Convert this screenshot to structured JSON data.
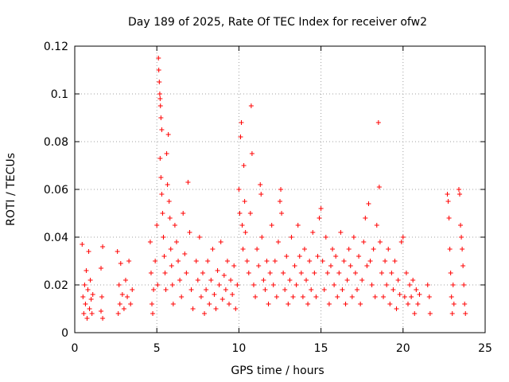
{
  "chart_data": {
    "type": "scatter",
    "title": "Day 189 of 2025, Rate Of TEC Index for receiver ofw2",
    "xlabel": "GPS time / hours",
    "ylabel": "ROTI / TECUs",
    "xlim": [
      0,
      25
    ],
    "ylim": [
      0,
      0.12
    ],
    "x_ticks": [
      0,
      5,
      10,
      15,
      20,
      25
    ],
    "x_tick_labels": [
      "0",
      "5",
      "10",
      "15",
      "20",
      "25"
    ],
    "y_ticks": [
      0,
      0.02,
      0.04,
      0.06,
      0.08,
      0.1,
      0.12
    ],
    "y_tick_labels": [
      "0",
      "0.02",
      "0.04",
      "0.06",
      "0.08",
      "0.1",
      "0.12"
    ],
    "grid": true,
    "marker": "+",
    "color": "#ff0000",
    "series": [
      {
        "points": [
          [
            0.45,
            0.037
          ],
          [
            0.5,
            0.015
          ],
          [
            0.55,
            0.008
          ],
          [
            0.6,
            0.02
          ],
          [
            0.65,
            0.012
          ],
          [
            0.7,
            0.026
          ],
          [
            0.75,
            0.006
          ],
          [
            0.8,
            0.018
          ],
          [
            0.85,
            0.034
          ],
          [
            0.9,
            0.01
          ],
          [
            0.95,
            0.022
          ],
          [
            1.0,
            0.014
          ],
          [
            1.05,
            0.008
          ],
          [
            1.1,
            0.016
          ],
          [
            1.6,
            0.027
          ],
          [
            1.6,
            0.009
          ],
          [
            1.65,
            0.015
          ],
          [
            1.7,
            0.036
          ],
          [
            1.7,
            0.006
          ],
          [
            2.6,
            0.034
          ],
          [
            2.65,
            0.008
          ],
          [
            2.7,
            0.02
          ],
          [
            2.75,
            0.012
          ],
          [
            2.8,
            0.029
          ],
          [
            2.9,
            0.016
          ],
          [
            3.0,
            0.01
          ],
          [
            3.1,
            0.022
          ],
          [
            3.2,
            0.015
          ],
          [
            3.3,
            0.03
          ],
          [
            3.4,
            0.012
          ],
          [
            3.5,
            0.018
          ],
          [
            4.6,
            0.038
          ],
          [
            4.65,
            0.025
          ],
          [
            4.7,
            0.012
          ],
          [
            4.75,
            0.008
          ],
          [
            4.8,
            0.018
          ],
          [
            4.9,
            0.03
          ],
          [
            5.0,
            0.045
          ],
          [
            5.05,
            0.02
          ],
          [
            5.1,
            0.115
          ],
          [
            5.12,
            0.11
          ],
          [
            5.15,
            0.105
          ],
          [
            5.18,
            0.1
          ],
          [
            5.2,
            0.098
          ],
          [
            5.22,
            0.095
          ],
          [
            5.25,
            0.09
          ],
          [
            5.3,
            0.085
          ],
          [
            5.2,
            0.073
          ],
          [
            5.25,
            0.065
          ],
          [
            5.3,
            0.058
          ],
          [
            5.35,
            0.05
          ],
          [
            5.4,
            0.04
          ],
          [
            5.45,
            0.032
          ],
          [
            5.5,
            0.025
          ],
          [
            5.55,
            0.018
          ],
          [
            5.6,
            0.075
          ],
          [
            5.65,
            0.062
          ],
          [
            5.7,
            0.083
          ],
          [
            5.75,
            0.055
          ],
          [
            5.8,
            0.048
          ],
          [
            5.85,
            0.035
          ],
          [
            5.9,
            0.028
          ],
          [
            5.95,
            0.02
          ],
          [
            6.0,
            0.012
          ],
          [
            6.1,
            0.045
          ],
          [
            6.2,
            0.038
          ],
          [
            6.3,
            0.03
          ],
          [
            6.4,
            0.022
          ],
          [
            6.5,
            0.015
          ],
          [
            6.6,
            0.05
          ],
          [
            6.7,
            0.033
          ],
          [
            6.8,
            0.025
          ],
          [
            6.9,
            0.063
          ],
          [
            7.0,
            0.042
          ],
          [
            7.1,
            0.018
          ],
          [
            7.2,
            0.01
          ],
          [
            7.4,
            0.03
          ],
          [
            7.5,
            0.022
          ],
          [
            7.6,
            0.04
          ],
          [
            7.7,
            0.015
          ],
          [
            7.8,
            0.025
          ],
          [
            7.9,
            0.008
          ],
          [
            8.0,
            0.018
          ],
          [
            8.1,
            0.03
          ],
          [
            8.2,
            0.012
          ],
          [
            8.3,
            0.022
          ],
          [
            8.4,
            0.035
          ],
          [
            8.5,
            0.016
          ],
          [
            8.6,
            0.01
          ],
          [
            8.7,
            0.026
          ],
          [
            8.8,
            0.02
          ],
          [
            8.9,
            0.038
          ],
          [
            9.0,
            0.014
          ],
          [
            9.1,
            0.024
          ],
          [
            9.2,
            0.018
          ],
          [
            9.3,
            0.03
          ],
          [
            9.4,
            0.012
          ],
          [
            9.5,
            0.022
          ],
          [
            9.6,
            0.016
          ],
          [
            9.7,
            0.028
          ],
          [
            9.8,
            0.01
          ],
          [
            9.9,
            0.02
          ],
          [
            10.0,
            0.06
          ],
          [
            10.05,
            0.05
          ],
          [
            10.1,
            0.082
          ],
          [
            10.15,
            0.088
          ],
          [
            10.2,
            0.045
          ],
          [
            10.25,
            0.035
          ],
          [
            10.3,
            0.07
          ],
          [
            10.35,
            0.055
          ],
          [
            10.4,
            0.042
          ],
          [
            10.5,
            0.03
          ],
          [
            10.6,
            0.025
          ],
          [
            10.7,
            0.05
          ],
          [
            10.75,
            0.095
          ],
          [
            10.8,
            0.075
          ],
          [
            10.9,
            0.02
          ],
          [
            11.0,
            0.015
          ],
          [
            11.1,
            0.035
          ],
          [
            11.2,
            0.028
          ],
          [
            11.3,
            0.062
          ],
          [
            11.35,
            0.058
          ],
          [
            11.4,
            0.04
          ],
          [
            11.5,
            0.022
          ],
          [
            11.6,
            0.018
          ],
          [
            11.7,
            0.03
          ],
          [
            11.8,
            0.012
          ],
          [
            11.9,
            0.025
          ],
          [
            12.0,
            0.045
          ],
          [
            12.1,
            0.02
          ],
          [
            12.2,
            0.03
          ],
          [
            12.3,
            0.015
          ],
          [
            12.4,
            0.038
          ],
          [
            12.5,
            0.055
          ],
          [
            12.55,
            0.06
          ],
          [
            12.6,
            0.05
          ],
          [
            12.7,
            0.025
          ],
          [
            12.8,
            0.018
          ],
          [
            12.9,
            0.032
          ],
          [
            13.0,
            0.012
          ],
          [
            13.1,
            0.022
          ],
          [
            13.2,
            0.04
          ],
          [
            13.3,
            0.015
          ],
          [
            13.4,
            0.028
          ],
          [
            13.5,
            0.02
          ],
          [
            13.6,
            0.045
          ],
          [
            13.7,
            0.032
          ],
          [
            13.8,
            0.025
          ],
          [
            13.9,
            0.015
          ],
          [
            14.0,
            0.035
          ],
          [
            14.1,
            0.022
          ],
          [
            14.2,
            0.012
          ],
          [
            14.3,
            0.03
          ],
          [
            14.4,
            0.018
          ],
          [
            14.5,
            0.042
          ],
          [
            14.6,
            0.025
          ],
          [
            14.7,
            0.015
          ],
          [
            14.8,
            0.032
          ],
          [
            14.9,
            0.048
          ],
          [
            15.0,
            0.052
          ],
          [
            15.1,
            0.03
          ],
          [
            15.2,
            0.018
          ],
          [
            15.3,
            0.04
          ],
          [
            15.4,
            0.025
          ],
          [
            15.5,
            0.012
          ],
          [
            15.6,
            0.028
          ],
          [
            15.7,
            0.035
          ],
          [
            15.8,
            0.02
          ],
          [
            15.9,
            0.032
          ],
          [
            16.0,
            0.015
          ],
          [
            16.1,
            0.025
          ],
          [
            16.2,
            0.042
          ],
          [
            16.3,
            0.018
          ],
          [
            16.4,
            0.03
          ],
          [
            16.5,
            0.012
          ],
          [
            16.6,
            0.022
          ],
          [
            16.7,
            0.035
          ],
          [
            16.8,
            0.028
          ],
          [
            16.9,
            0.015
          ],
          [
            17.0,
            0.04
          ],
          [
            17.1,
            0.025
          ],
          [
            17.2,
            0.018
          ],
          [
            17.3,
            0.032
          ],
          [
            17.4,
            0.012
          ],
          [
            17.5,
            0.022
          ],
          [
            17.6,
            0.038
          ],
          [
            17.7,
            0.048
          ],
          [
            17.8,
            0.028
          ],
          [
            17.9,
            0.054
          ],
          [
            18.0,
            0.03
          ],
          [
            18.1,
            0.02
          ],
          [
            18.2,
            0.035
          ],
          [
            18.3,
            0.015
          ],
          [
            18.4,
            0.045
          ],
          [
            18.5,
            0.088
          ],
          [
            18.55,
            0.061
          ],
          [
            18.6,
            0.038
          ],
          [
            18.7,
            0.025
          ],
          [
            18.8,
            0.015
          ],
          [
            18.9,
            0.03
          ],
          [
            19.0,
            0.02
          ],
          [
            19.1,
            0.035
          ],
          [
            19.2,
            0.012
          ],
          [
            19.3,
            0.025
          ],
          [
            19.4,
            0.018
          ],
          [
            19.5,
            0.03
          ],
          [
            19.6,
            0.01
          ],
          [
            19.7,
            0.022
          ],
          [
            19.8,
            0.016
          ],
          [
            19.9,
            0.038
          ],
          [
            20.0,
            0.04
          ],
          [
            20.1,
            0.015
          ],
          [
            20.2,
            0.025
          ],
          [
            20.3,
            0.012
          ],
          [
            20.4,
            0.02
          ],
          [
            20.5,
            0.015
          ],
          [
            20.6,
            0.022
          ],
          [
            20.7,
            0.008
          ],
          [
            20.8,
            0.018
          ],
          [
            20.9,
            0.012
          ],
          [
            21.0,
            0.016
          ],
          [
            21.5,
            0.02
          ],
          [
            21.6,
            0.015
          ],
          [
            21.65,
            0.008
          ],
          [
            22.7,
            0.058
          ],
          [
            22.75,
            0.055
          ],
          [
            22.8,
            0.048
          ],
          [
            22.85,
            0.035
          ],
          [
            22.9,
            0.025
          ],
          [
            22.95,
            0.015
          ],
          [
            23.0,
            0.008
          ],
          [
            23.05,
            0.02
          ],
          [
            23.1,
            0.012
          ],
          [
            23.4,
            0.06
          ],
          [
            23.45,
            0.058
          ],
          [
            23.5,
            0.045
          ],
          [
            23.55,
            0.04
          ],
          [
            23.6,
            0.035
          ],
          [
            23.65,
            0.028
          ],
          [
            23.7,
            0.02
          ],
          [
            23.75,
            0.012
          ],
          [
            23.8,
            0.008
          ]
        ]
      }
    ]
  }
}
